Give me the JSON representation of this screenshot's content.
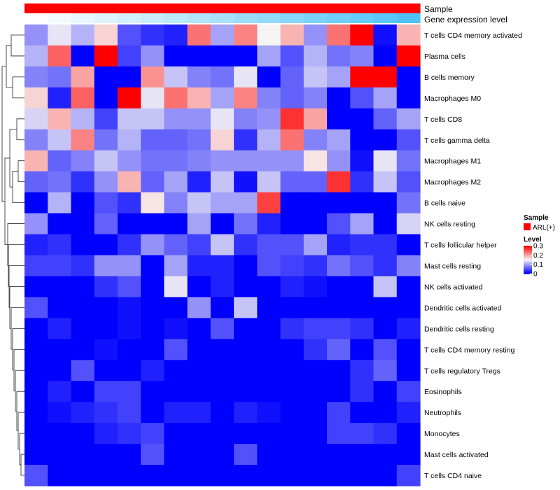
{
  "chart_data": {
    "type": "heatmap",
    "title": "",
    "annotation_tracks": [
      {
        "label": "Sample",
        "color_start": "#ff0000",
        "color_end": "#ff0000"
      },
      {
        "label": "Gene expression level",
        "color_start": "#ffffff",
        "color_end": "#4fc3f7"
      }
    ],
    "rows": [
      "T cells CD4 memory activated",
      "Plasma cells",
      "B cells memory",
      "Macrophages M0",
      "T cells CD8",
      "T cells gamma delta",
      "Macrophages M1",
      "Macrophages M2",
      "B cells naive",
      "NK cells resting",
      "T cells follicular helper",
      "Mast cells resting",
      "NK cells activated",
      "Dendritic cells activated",
      "Dendritic cells resting",
      "T cells CD4 memory resting",
      "T cells regulatory  Tregs",
      "Eosinophils",
      "Neutrophils",
      "Monocytes",
      "Mast cells activated",
      "T cells CD4 naive"
    ],
    "values": [
      [
        0.09,
        0.14,
        0.11,
        0.17,
        0.05,
        0.03,
        0.02,
        0.23,
        0.1,
        0.22,
        0.15,
        0.19,
        0.09,
        0.23,
        0.3,
        0.01,
        0.19
      ],
      [
        0.11,
        0.24,
        0.0,
        0.3,
        0.04,
        0.09,
        0.0,
        0.0,
        0.0,
        0.0,
        0.1,
        0.05,
        0.11,
        0.07,
        0.08,
        0.0,
        0.3
      ],
      [
        0.08,
        0.07,
        0.2,
        0.0,
        0.0,
        0.21,
        0.12,
        0.08,
        0.07,
        0.14,
        0.0,
        0.06,
        0.12,
        0.1,
        0.3,
        0.3,
        0.0
      ],
      [
        0.17,
        0.02,
        0.24,
        0.0,
        0.3,
        0.14,
        0.23,
        0.19,
        0.1,
        0.22,
        0.08,
        0.06,
        0.08,
        0.0,
        0.05,
        0.1,
        0.0
      ],
      [
        0.13,
        0.19,
        0.11,
        0.04,
        0.12,
        0.12,
        0.09,
        0.09,
        0.14,
        0.08,
        0.09,
        0.27,
        0.2,
        0.0,
        0.0,
        0.06,
        0.1
      ],
      [
        0.08,
        0.12,
        0.22,
        0.07,
        0.11,
        0.06,
        0.06,
        0.07,
        0.17,
        0.03,
        0.11,
        0.23,
        0.08,
        0.1,
        0.0,
        0.0,
        0.05
      ],
      [
        0.19,
        0.06,
        0.08,
        0.12,
        0.09,
        0.07,
        0.07,
        0.08,
        0.09,
        0.09,
        0.09,
        0.09,
        0.16,
        0.09,
        0.01,
        0.14,
        0.07
      ],
      [
        0.06,
        0.07,
        0.03,
        0.09,
        0.19,
        0.06,
        0.1,
        0.02,
        0.12,
        0.01,
        0.12,
        0.06,
        0.06,
        0.27,
        0.03,
        0.12,
        0.05
      ],
      [
        0.0,
        0.11,
        0.0,
        0.05,
        0.03,
        0.16,
        0.08,
        0.12,
        0.1,
        0.1,
        0.26,
        0.0,
        0.0,
        0.0,
        0.0,
        0.0,
        0.07
      ],
      [
        0.09,
        0.0,
        0.0,
        0.06,
        0.0,
        0.0,
        0.0,
        0.1,
        0.0,
        0.07,
        0.02,
        0.0,
        0.0,
        0.05,
        0.1,
        0.0,
        0.13
      ],
      [
        0.02,
        0.03,
        0.0,
        0.0,
        0.03,
        0.09,
        0.06,
        0.04,
        0.12,
        0.03,
        0.05,
        0.05,
        0.1,
        0.02,
        0.03,
        0.03,
        0.0
      ],
      [
        0.04,
        0.04,
        0.03,
        0.09,
        0.09,
        0.0,
        0.1,
        0.02,
        0.02,
        0.0,
        0.05,
        0.04,
        0.03,
        0.07,
        0.05,
        0.03,
        0.08
      ],
      [
        0.0,
        0.0,
        0.0,
        0.03,
        0.05,
        0.0,
        0.14,
        0.0,
        0.02,
        0.0,
        0.0,
        0.02,
        0.01,
        0.0,
        0.0,
        0.12,
        0.0
      ],
      [
        0.05,
        0.0,
        0.0,
        0.0,
        0.01,
        0.0,
        0.0,
        0.09,
        0.0,
        0.12,
        0.0,
        0.0,
        0.0,
        0.0,
        0.0,
        0.0,
        0.0
      ],
      [
        0.0,
        0.02,
        0.0,
        0.0,
        0.01,
        0.0,
        0.01,
        0.0,
        0.05,
        0.0,
        0.0,
        0.03,
        0.04,
        0.04,
        0.03,
        0.0,
        0.02
      ],
      [
        0.0,
        0.0,
        0.0,
        0.01,
        0.0,
        0.0,
        0.05,
        0.0,
        0.0,
        0.0,
        0.0,
        0.0,
        0.03,
        0.06,
        0.0,
        0.05,
        0.0
      ],
      [
        0.0,
        0.0,
        0.05,
        0.0,
        0.0,
        0.02,
        0.0,
        0.0,
        0.0,
        0.0,
        0.0,
        0.0,
        0.0,
        0.0,
        0.03,
        0.06,
        0.0
      ],
      [
        0.0,
        0.02,
        0.0,
        0.04,
        0.04,
        0.0,
        0.0,
        0.0,
        0.0,
        0.0,
        0.0,
        0.0,
        0.0,
        0.0,
        0.03,
        0.0,
        0.04
      ],
      [
        0.0,
        0.01,
        0.02,
        0.03,
        0.04,
        0.0,
        0.02,
        0.02,
        0.0,
        0.02,
        0.01,
        0.0,
        0.0,
        0.04,
        0.0,
        0.0,
        0.02
      ],
      [
        0.0,
        0.0,
        0.0,
        0.02,
        0.03,
        0.04,
        0.0,
        0.0,
        0.0,
        0.0,
        0.0,
        0.0,
        0.0,
        0.04,
        0.04,
        0.03,
        0.0
      ],
      [
        0.0,
        0.0,
        0.0,
        0.0,
        0.0,
        0.05,
        0.0,
        0.0,
        0.0,
        0.05,
        0.0,
        0.0,
        0.0,
        0.0,
        0.0,
        0.0,
        0.0
      ],
      [
        0.05,
        0.0,
        0.0,
        0.0,
        0.0,
        0.0,
        0.0,
        0.0,
        0.0,
        0.0,
        0.0,
        0.0,
        0.0,
        0.0,
        0.0,
        0.0,
        0.04
      ]
    ],
    "color_scale": {
      "min": 0,
      "mid": 0.15,
      "max": 0.3,
      "low": "#0000ff",
      "midColor": "#f7f4f4",
      "high": "#ff0000"
    },
    "legend": {
      "sample_title": "Sample",
      "sample_entry": "ARL(+)",
      "sample_color": "#ff0000",
      "level_title": "Level",
      "ticks": [
        {
          "value": 0.3,
          "label": "0.3"
        },
        {
          "value": 0.2,
          "label": "0.2"
        },
        {
          "value": 0.1,
          "label": "0.1"
        },
        {
          "value": 0,
          "label": "0"
        }
      ],
      "placement": "right"
    },
    "dendrogram": "rows (left)"
  }
}
